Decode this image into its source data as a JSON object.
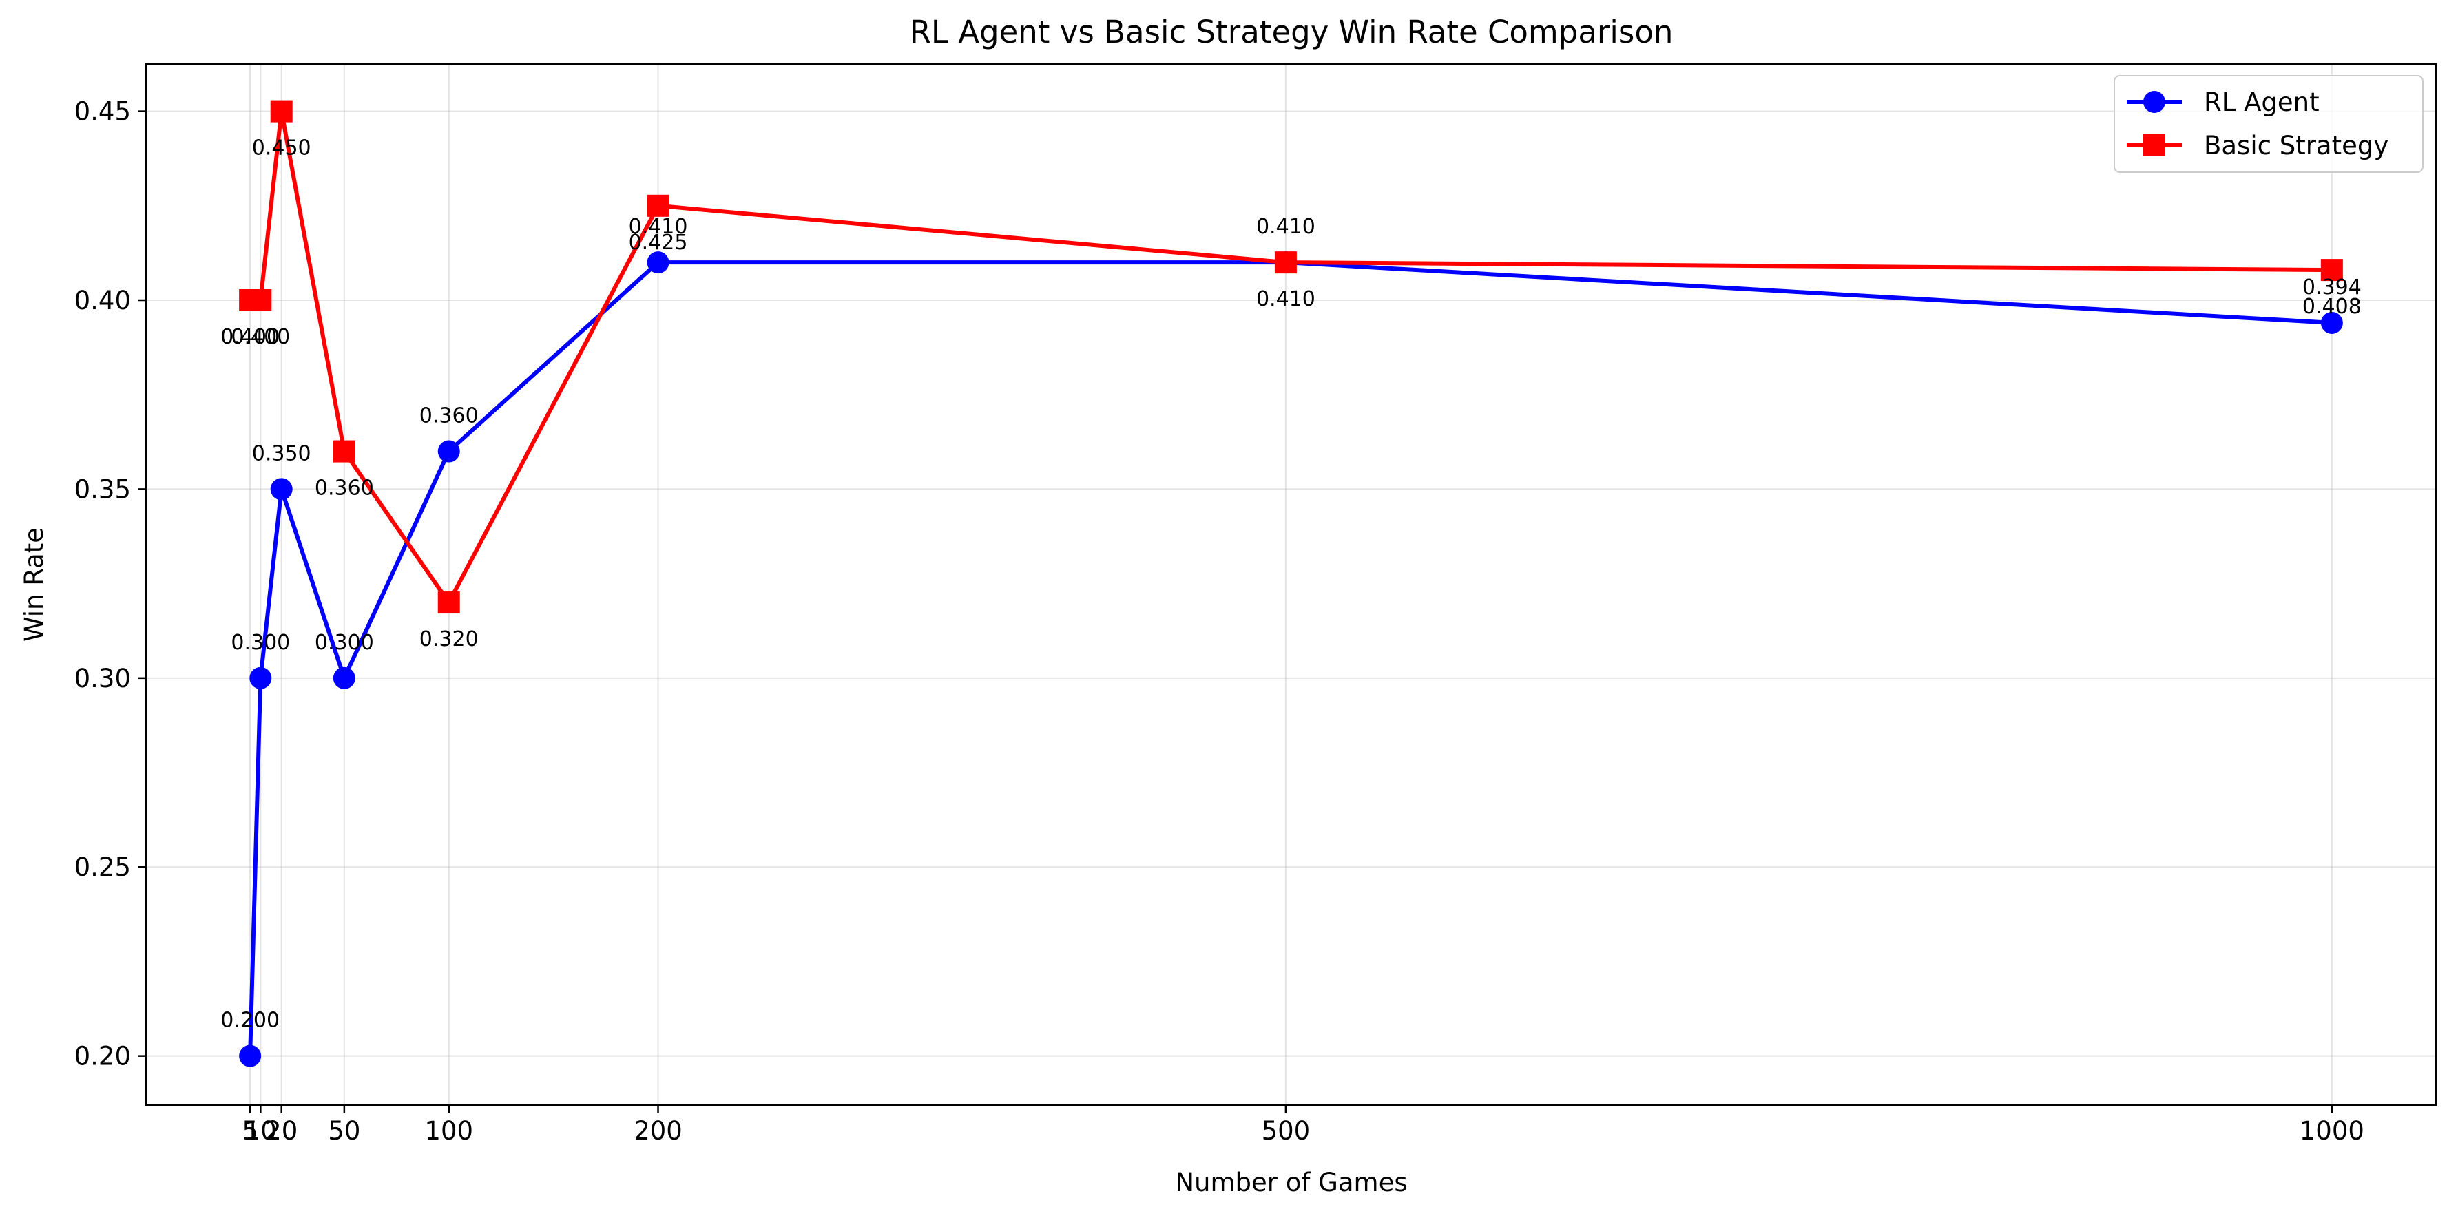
{
  "chart_data": {
    "type": "line",
    "title": "RL Agent vs Basic Strategy Win Rate Comparison",
    "xlabel": "Number of Games",
    "ylabel": "Win Rate",
    "x": [
      5,
      10,
      20,
      50,
      100,
      200,
      500,
      1000
    ],
    "xticks": [
      5,
      10,
      20,
      50,
      100,
      200,
      500,
      1000
    ],
    "xtick_labels": [
      "5",
      "10",
      "20",
      "50",
      "100",
      "200",
      "500",
      "1000"
    ],
    "yticks": [
      0.2,
      0.25,
      0.3,
      0.35,
      0.4,
      0.45
    ],
    "ytick_labels": [
      "0.20",
      "0.25",
      "0.30",
      "0.35",
      "0.40",
      "0.45"
    ],
    "xlim": [
      -44.75,
      1049.75
    ],
    "ylim": [
      0.187,
      0.4625
    ],
    "grid": true,
    "legend_position": "top-right",
    "series": [
      {
        "name": "RL Agent",
        "color": "#0000ff",
        "marker": "circle",
        "values": [
          0.2,
          0.3,
          0.35,
          0.3,
          0.36,
          0.41,
          0.41,
          0.394
        ],
        "labels": [
          "0.200",
          "0.300",
          "0.350",
          "0.300",
          "0.360",
          "0.410",
          "0.410",
          "0.394"
        ]
      },
      {
        "name": "Basic Strategy",
        "color": "#ff0000",
        "marker": "square",
        "values": [
          0.4,
          0.4,
          0.45,
          0.36,
          0.32,
          0.425,
          0.41,
          0.408
        ],
        "labels": [
          "0.400",
          "0.400",
          "0.450",
          "0.360",
          "0.320",
          "0.425",
          "0.410",
          "0.408"
        ]
      }
    ]
  }
}
